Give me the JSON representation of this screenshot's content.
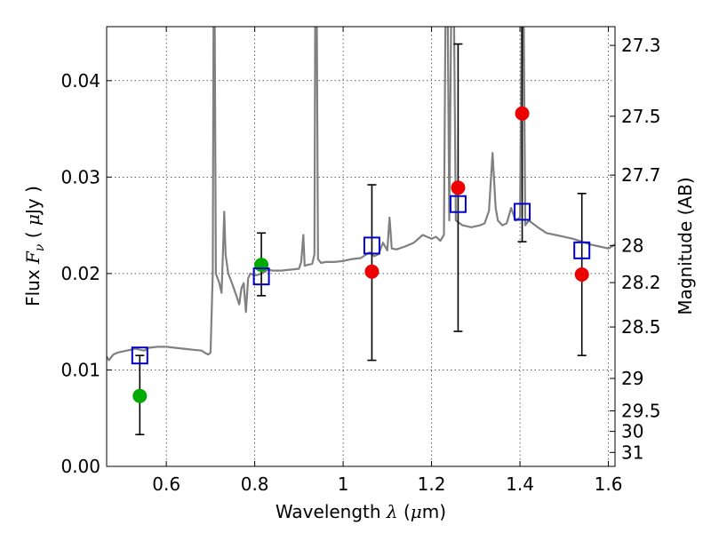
{
  "chart_data": {
    "type": "scatter",
    "xlabel": {
      "prefix": "Wavelength  ",
      "symbol": "λ",
      "unit_open": " (",
      "mu": "μ",
      "unit_close": "m)"
    },
    "ylabel": {
      "prefix": "Flux  ",
      "symbol": "F",
      "sub": "ν",
      "unit_open": "  ( ",
      "mu": "μ",
      "unit_close": "Jy )"
    },
    "y2label": "Magnitude (AB)",
    "xlim": [
      0.465,
      1.615
    ],
    "ylim": [
      0.0,
      0.0456
    ],
    "xticks": [
      0.6,
      0.8,
      1.0,
      1.2,
      1.4,
      1.6
    ],
    "xtick_labels": [
      "0.6",
      "0.8",
      "1",
      "1.2",
      "1.4",
      "1.6"
    ],
    "yticks": [
      0.0,
      0.01,
      0.02,
      0.03,
      0.04
    ],
    "ytick_labels": [
      "0.00",
      "0.01",
      "0.02",
      "0.03",
      "0.04"
    ],
    "y2ticks": [
      27.3,
      27.5,
      27.7,
      28.0,
      28.2,
      28.5,
      29.0,
      29.5,
      30.0,
      31.0
    ],
    "y2tick_labels": [
      "27.3",
      "27.5",
      "27.7",
      "28",
      "28.2",
      "28.5",
      "29",
      "29.5",
      "30",
      "31"
    ],
    "grid": true,
    "colors": {
      "model": "#808080",
      "green": "#00aa00",
      "red": "#ee0000",
      "blue": "#0000cc",
      "error": "#000000"
    },
    "series": [
      {
        "name": "model SED",
        "style": "line",
        "points": [
          [
            0.465,
            0.0114
          ],
          [
            0.47,
            0.011
          ],
          [
            0.48,
            0.0116
          ],
          [
            0.49,
            0.0118
          ],
          [
            0.5,
            0.0119
          ],
          [
            0.51,
            0.012
          ],
          [
            0.52,
            0.0121
          ],
          [
            0.53,
            0.0122
          ],
          [
            0.54,
            0.0121
          ],
          [
            0.55,
            0.012
          ],
          [
            0.56,
            0.0123
          ],
          [
            0.58,
            0.0124
          ],
          [
            0.6,
            0.0124
          ],
          [
            0.62,
            0.0123
          ],
          [
            0.64,
            0.0122
          ],
          [
            0.66,
            0.0121
          ],
          [
            0.68,
            0.012
          ],
          [
            0.69,
            0.0117
          ],
          [
            0.695,
            0.0116
          ],
          [
            0.7,
            0.0118
          ],
          [
            0.705,
            0.02
          ],
          [
            0.707,
            0.05
          ],
          [
            0.709,
            0.05
          ],
          [
            0.712,
            0.02
          ],
          [
            0.72,
            0.019
          ],
          [
            0.725,
            0.018
          ],
          [
            0.728,
            0.022
          ],
          [
            0.731,
            0.0264
          ],
          [
            0.734,
            0.022
          ],
          [
            0.74,
            0.02
          ],
          [
            0.75,
            0.0188
          ],
          [
            0.76,
            0.0175
          ],
          [
            0.765,
            0.0168
          ],
          [
            0.77,
            0.0185
          ],
          [
            0.775,
            0.019
          ],
          [
            0.78,
            0.016
          ],
          [
            0.785,
            0.0195
          ],
          [
            0.79,
            0.02
          ],
          [
            0.8,
            0.0198
          ],
          [
            0.81,
            0.0199
          ],
          [
            0.82,
            0.0201
          ],
          [
            0.83,
            0.0204
          ],
          [
            0.84,
            0.0203
          ],
          [
            0.86,
            0.0203
          ],
          [
            0.88,
            0.0204
          ],
          [
            0.9,
            0.0205
          ],
          [
            0.905,
            0.0212
          ],
          [
            0.91,
            0.024
          ],
          [
            0.913,
            0.0208
          ],
          [
            0.92,
            0.0209
          ],
          [
            0.93,
            0.021
          ],
          [
            0.935,
            0.022
          ],
          [
            0.937,
            0.05
          ],
          [
            0.94,
            0.05
          ],
          [
            0.943,
            0.0215
          ],
          [
            0.95,
            0.0211
          ],
          [
            0.96,
            0.0212
          ],
          [
            0.98,
            0.0212
          ],
          [
            1.0,
            0.0213
          ],
          [
            1.02,
            0.0215
          ],
          [
            1.04,
            0.0216
          ],
          [
            1.06,
            0.0222
          ],
          [
            1.07,
            0.0218
          ],
          [
            1.08,
            0.022
          ],
          [
            1.09,
            0.0232
          ],
          [
            1.1,
            0.0224
          ],
          [
            1.105,
            0.0258
          ],
          [
            1.11,
            0.0226
          ],
          [
            1.12,
            0.0225
          ],
          [
            1.14,
            0.0228
          ],
          [
            1.16,
            0.0232
          ],
          [
            1.18,
            0.024
          ],
          [
            1.19,
            0.0238
          ],
          [
            1.2,
            0.0236
          ],
          [
            1.21,
            0.0238
          ],
          [
            1.22,
            0.0234
          ],
          [
            1.228,
            0.024
          ],
          [
            1.232,
            0.05
          ],
          [
            1.236,
            0.05
          ],
          [
            1.24,
            0.0255
          ],
          [
            1.245,
            0.05
          ],
          [
            1.25,
            0.05
          ],
          [
            1.255,
            0.0255
          ],
          [
            1.27,
            0.025
          ],
          [
            1.29,
            0.0248
          ],
          [
            1.31,
            0.025
          ],
          [
            1.32,
            0.0252
          ],
          [
            1.33,
            0.0265
          ],
          [
            1.338,
            0.0325
          ],
          [
            1.345,
            0.0268
          ],
          [
            1.35,
            0.0255
          ],
          [
            1.36,
            0.025
          ],
          [
            1.37,
            0.0252
          ],
          [
            1.38,
            0.0268
          ],
          [
            1.39,
            0.0255
          ],
          [
            1.4,
            0.0258
          ],
          [
            1.405,
            0.05
          ],
          [
            1.408,
            0.05
          ],
          [
            1.412,
            0.025
          ],
          [
            1.42,
            0.0255
          ],
          [
            1.44,
            0.0248
          ],
          [
            1.46,
            0.0242
          ],
          [
            1.48,
            0.024
          ],
          [
            1.5,
            0.0238
          ],
          [
            1.52,
            0.0236
          ],
          [
            1.54,
            0.0233
          ],
          [
            1.56,
            0.023
          ],
          [
            1.58,
            0.0228
          ],
          [
            1.6,
            0.0226
          ],
          [
            1.615,
            0.023
          ]
        ]
      },
      {
        "name": "green detections",
        "style": "circle",
        "color": "green",
        "points": [
          [
            0.54,
            0.0073
          ],
          [
            0.815,
            0.0209
          ]
        ]
      },
      {
        "name": "red detections",
        "style": "circle",
        "color": "red",
        "points": [
          [
            1.065,
            0.0202
          ],
          [
            1.26,
            0.0289
          ],
          [
            1.405,
            0.0366
          ],
          [
            1.54,
            0.0199
          ]
        ]
      },
      {
        "name": "model photometry",
        "style": "square",
        "color": "blue",
        "points": [
          [
            0.54,
            0.0115
          ],
          [
            0.815,
            0.0197
          ],
          [
            1.065,
            0.0229
          ],
          [
            1.26,
            0.0272
          ],
          [
            1.405,
            0.0264
          ],
          [
            1.54,
            0.0224
          ]
        ]
      },
      {
        "name": "errors",
        "style": "errorbar",
        "color": "error",
        "points": [
          [
            0.54,
            0.0033,
            0.0115
          ],
          [
            0.815,
            0.0177,
            0.0242
          ],
          [
            1.065,
            0.011,
            0.0292
          ],
          [
            1.26,
            0.014,
            0.0438
          ],
          [
            1.405,
            0.0233,
            0.05
          ],
          [
            1.54,
            0.0115,
            0.0283
          ]
        ]
      }
    ]
  }
}
